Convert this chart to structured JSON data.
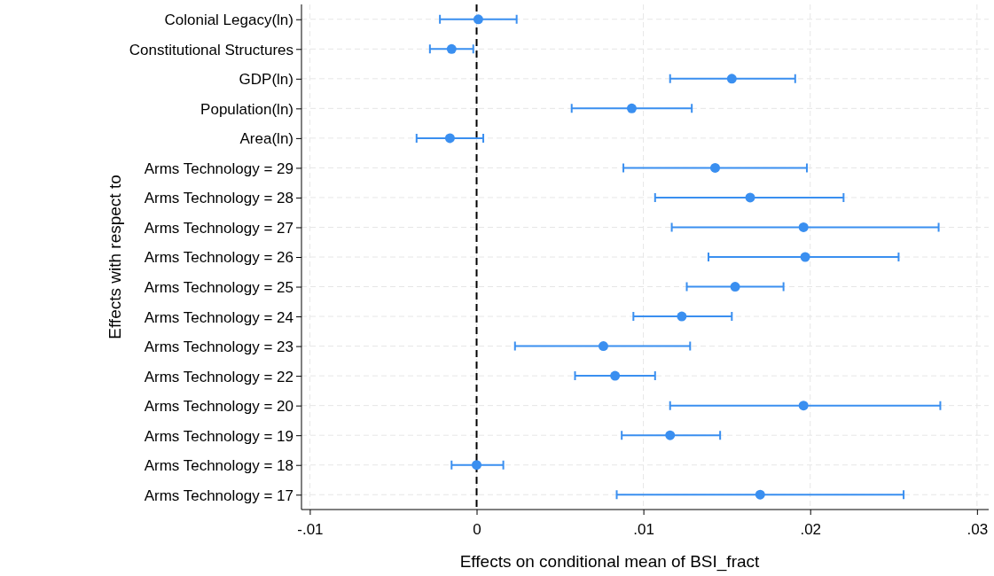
{
  "chart_data": {
    "type": "scatter",
    "orientation": "horizontal",
    "xlabel": "Effects on conditional mean of BSI_fract",
    "ylabel": "Effects with respect to",
    "categories": [
      "Colonial Legacy(ln)",
      "Constitutional Structures",
      "GDP(ln)",
      "Population(ln)",
      "Area(ln)",
      "Arms Technology = 29",
      "Arms Technology = 28",
      "Arms Technology = 27",
      "Arms Technology = 26",
      "Arms Technology = 25",
      "Arms Technology = 24",
      "Arms Technology = 23",
      "Arms Technology = 22",
      "Arms Technology = 20",
      "Arms Technology = 19",
      "Arms Technology = 18",
      "Arms Technology = 17"
    ],
    "series": [
      {
        "color": "#3a8ff0",
        "values": [
          0.0001,
          -0.0015,
          0.0153,
          0.0093,
          -0.0016,
          0.0143,
          0.0164,
          0.0196,
          0.0197,
          0.0155,
          0.0123,
          0.0076,
          0.0083,
          0.0196,
          0.0116,
          0.0,
          0.017
        ],
        "errors": [
          [
            -0.0022,
            0.0024
          ],
          [
            -0.0028,
            -0.0002
          ],
          [
            0.0116,
            0.0191
          ],
          [
            0.0057,
            0.0129
          ],
          [
            -0.0036,
            0.0004
          ],
          [
            0.0088,
            0.0198
          ],
          [
            0.0107,
            0.022
          ],
          [
            0.0117,
            0.0277
          ],
          [
            0.0139,
            0.0253
          ],
          [
            0.0126,
            0.0184
          ],
          [
            0.0094,
            0.0153
          ],
          [
            0.0023,
            0.0128
          ],
          [
            0.0059,
            0.0107
          ],
          [
            0.0116,
            0.0278
          ],
          [
            0.0087,
            0.0146
          ],
          [
            -0.0015,
            0.0016
          ],
          [
            0.0084,
            0.0256
          ]
        ]
      }
    ],
    "xlim": [
      -0.0105,
      0.0307
    ],
    "xticks": [
      {
        "value": -0.01,
        "label": "-.01"
      },
      0,
      {
        "value": 0.01,
        "label": ".01"
      },
      {
        "value": 0.02,
        "label": ".02"
      },
      {
        "value": 0.03,
        "label": ".03"
      }
    ],
    "ref_lines": [
      {
        "axis": "x",
        "value": 0,
        "color": "#000000",
        "line_style": "dashed"
      }
    ],
    "grid": true,
    "marker": "circle"
  }
}
